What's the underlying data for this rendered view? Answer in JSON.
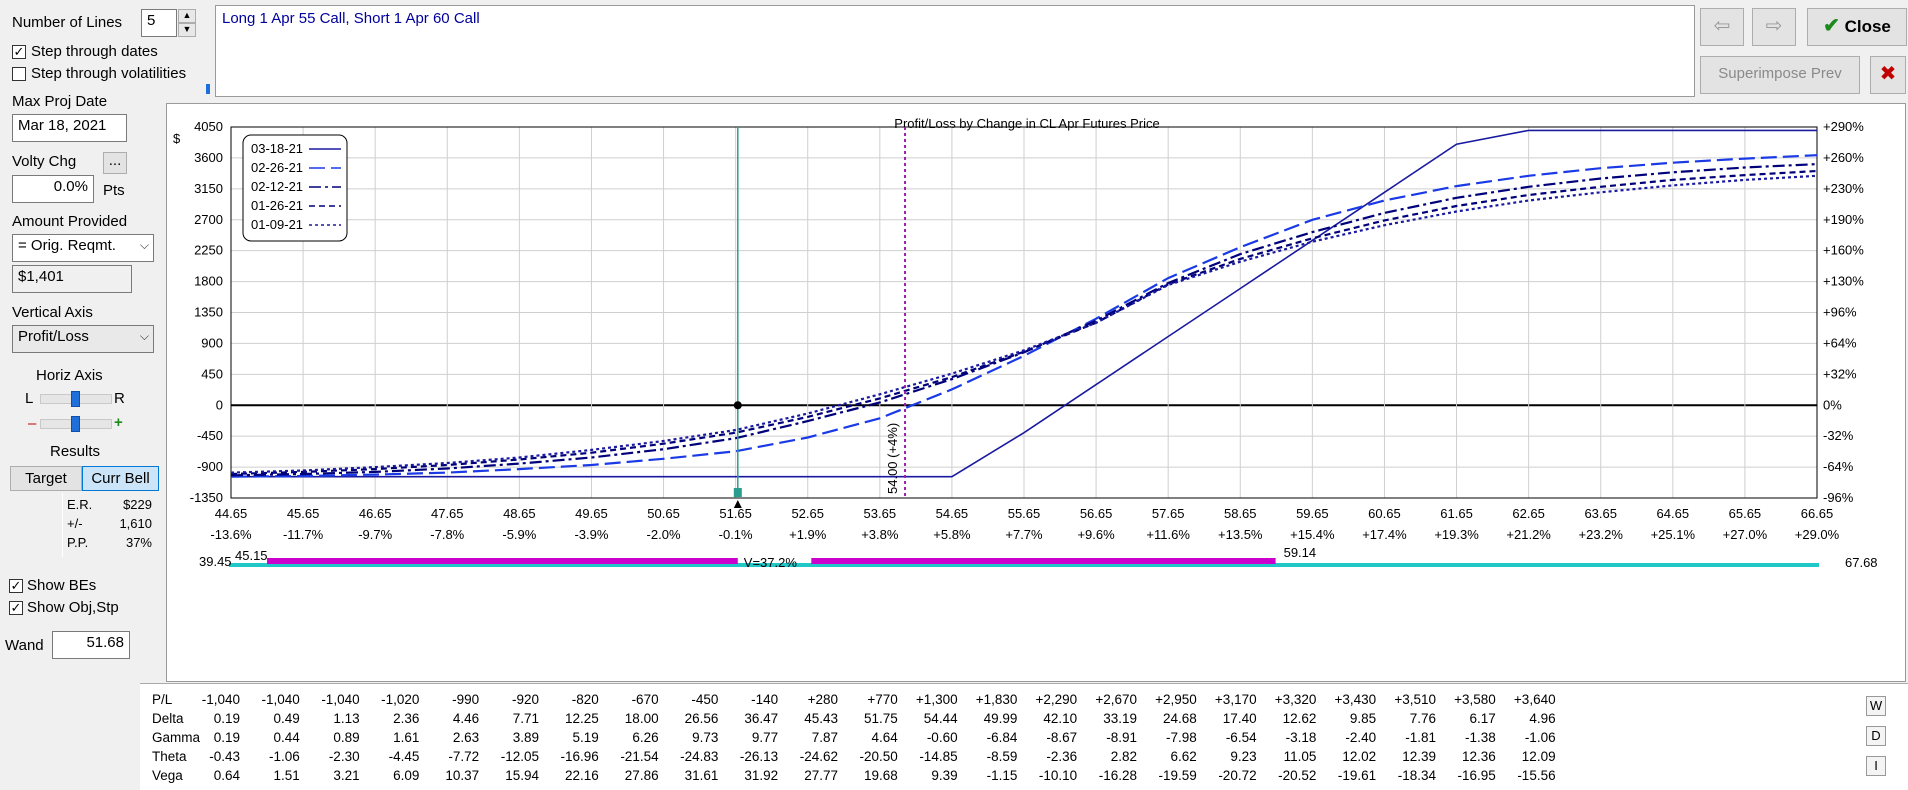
{
  "controls": {
    "number_of_lines_label": "Number of Lines",
    "number_of_lines_value": "5",
    "step_dates_label": "Step through dates",
    "step_dates_checked": true,
    "step_vol_label": "Step through volatilities",
    "step_vol_checked": false,
    "max_proj_date_label": "Max Proj Date",
    "max_proj_date_value": "Mar 18, 2021",
    "volty_chg_label": "Volty Chg",
    "volty_chg_button": "...",
    "volty_chg_value": "0.0%",
    "volty_chg_unit": "Pts",
    "amount_provided_label": "Amount Provided",
    "amount_provided_value": "= Orig. Reqmt.",
    "amount_value": "$1,401",
    "vertical_axis_label": "Vertical Axis",
    "vertical_axis_value": "Profit/Loss",
    "horiz_axis_label": "Horiz Axis",
    "horiz_l": "L",
    "horiz_r": "R",
    "zoom_minus": "–",
    "zoom_plus": "+",
    "results_label": "Results",
    "target_button": "Target",
    "curr_bell_button": "Curr Bell",
    "results": [
      {
        "key": "E.R.",
        "value": "$229"
      },
      {
        "key": "+/-",
        "value": "1,610"
      },
      {
        "key": "P.P.",
        "value": "37%"
      }
    ],
    "show_bes_label": "Show BEs",
    "show_bes_checked": true,
    "show_obj_label": "Show Obj,Stp",
    "show_obj_checked": true,
    "wand_label": "Wand",
    "wand_value": "51.68"
  },
  "description": "Long 1 Apr 55 Call, Short 1 Apr 60 Call",
  "toolbar": {
    "back_glyph": "⇦",
    "forward_glyph": "⇨",
    "close_label": "Close",
    "superimpose_label": "Superimpose Prev",
    "x_glyph": "✖"
  },
  "colors": {
    "accent": "#0000cc",
    "line": "#1a1aa0",
    "wand": "#2a9d8f",
    "target": "#9b1fa9",
    "magenta_bar": "#cc00cc",
    "cyan_bar": "#20c8c8",
    "close_check": "#1d8a1d",
    "x_red": "#c00000"
  },
  "chart_data": {
    "type": "line",
    "title": "Profit/Loss by Change in CL Apr Futures Price",
    "y_unit": "$",
    "xlim": [
      44.65,
      66.65
    ],
    "ylim": [
      -1350,
      4050
    ],
    "x_ticks": [
      "44.65",
      "45.65",
      "46.65",
      "47.65",
      "48.65",
      "49.65",
      "50.65",
      "51.65",
      "52.65",
      "53.65",
      "54.65",
      "55.65",
      "56.65",
      "57.65",
      "58.65",
      "59.65",
      "60.65",
      "61.65",
      "62.65",
      "63.65",
      "64.65",
      "65.65",
      "66.65"
    ],
    "x_pct_ticks": [
      "-13.6%",
      "-11.7%",
      "-9.7%",
      "-7.8%",
      "-5.9%",
      "-3.9%",
      "-2.0%",
      "-0.1%",
      "+1.9%",
      "+3.8%",
      "+5.8%",
      "+7.7%",
      "+9.6%",
      "+11.6%",
      "+13.5%",
      "+15.4%",
      "+17.4%",
      "+19.3%",
      "+21.2%",
      "+23.2%",
      "+25.1%",
      "+27.0%",
      "+29.0%"
    ],
    "y_ticks": [
      4050,
      3600,
      3150,
      2700,
      2250,
      1800,
      1350,
      900,
      450,
      0,
      -450,
      -900,
      -1350
    ],
    "y_pct_ticks": [
      {
        "value": 4050,
        "label": "+290%"
      },
      {
        "value": 3600,
        "label": "+260%"
      },
      {
        "value": 3150,
        "label": "+230%"
      },
      {
        "value": 2700,
        "label": "+190%"
      },
      {
        "value": 2250,
        "label": "+160%"
      },
      {
        "value": 1800,
        "label": "+130%"
      },
      {
        "value": 1350,
        "label": "+96%"
      },
      {
        "value": 900,
        "label": "+64%"
      },
      {
        "value": 450,
        "label": "+32%"
      },
      {
        "value": 0,
        "label": "0%"
      },
      {
        "value": -450,
        "label": "-32%"
      },
      {
        "value": -900,
        "label": "-64%"
      },
      {
        "value": -1350,
        "label": "-96%"
      }
    ],
    "legend": [
      "03-18-21",
      "02-26-21",
      "02-12-21",
      "01-26-21",
      "01-09-21"
    ],
    "legend_placement": "top-left",
    "grid": true,
    "x": [
      44.65,
      45.65,
      46.65,
      47.65,
      48.65,
      49.65,
      50.65,
      51.65,
      52.65,
      53.65,
      54.65,
      55.65,
      56.65,
      57.65,
      58.65,
      59.65,
      60.65,
      61.65,
      62.65,
      63.65,
      64.65,
      65.65,
      66.65
    ],
    "series": [
      {
        "name": "03-18-21",
        "dash": "solid",
        "values": [
          -1040,
          -1040,
          -1040,
          -1040,
          -1040,
          -1040,
          -1040,
          -1040,
          -1040,
          -1040,
          -1040,
          -400,
          300,
          1000,
          1700,
          2400,
          3100,
          3800,
          4000,
          4000,
          4000,
          4000,
          4000
        ]
      },
      {
        "name": "02-26-21",
        "dash": "long",
        "values": [
          -1040,
          -1030,
          -1010,
          -980,
          -930,
          -870,
          -780,
          -670,
          -470,
          -190,
          230,
          720,
          1260,
          1850,
          2300,
          2700,
          2980,
          3190,
          3340,
          3450,
          3530,
          3590,
          3640
        ]
      },
      {
        "name": "02-12-21",
        "dash": "dashdot",
        "values": [
          -1020,
          -1000,
          -970,
          -920,
          -850,
          -760,
          -640,
          -480,
          -230,
          40,
          380,
          770,
          1230,
          1780,
          2200,
          2520,
          2800,
          3020,
          3180,
          3300,
          3390,
          3460,
          3510
        ]
      },
      {
        "name": "01-26-21",
        "dash": "short",
        "values": [
          -1000,
          -970,
          -930,
          -870,
          -790,
          -690,
          -560,
          -400,
          -170,
          100,
          410,
          780,
          1200,
          1760,
          2130,
          2430,
          2690,
          2900,
          3060,
          3180,
          3280,
          3350,
          3410
        ]
      },
      {
        "name": "01-09-21",
        "dash": "dot",
        "values": [
          -980,
          -950,
          -900,
          -840,
          -760,
          -650,
          -520,
          -360,
          -120,
          160,
          460,
          800,
          1200,
          1750,
          2090,
          2380,
          2620,
          2820,
          2980,
          3100,
          3200,
          3280,
          3340
        ]
      }
    ],
    "wand_x": 51.68,
    "target_x": 54.0,
    "target_label": "54.00 (+4%)",
    "be_point": [
      51.68,
      0
    ],
    "bar_left_label": "39.45",
    "bar_left_label2": "45.15",
    "bar_vol_label": "V=37.2%",
    "bar_right_label": "59.14",
    "bar_end_label": "67.68"
  },
  "greeks": {
    "rows": [
      {
        "name": "P/L",
        "values": [
          "-1,040",
          "-1,040",
          "-1,040",
          "-1,020",
          "-990",
          "-920",
          "-820",
          "-670",
          "-450",
          "-140",
          "+280",
          "+770",
          "+1,300",
          "+1,830",
          "+2,290",
          "+2,670",
          "+2,950",
          "+3,170",
          "+3,320",
          "+3,430",
          "+3,510",
          "+3,580",
          "+3,640"
        ]
      },
      {
        "name": "Delta",
        "values": [
          "0.19",
          "0.49",
          "1.13",
          "2.36",
          "4.46",
          "7.71",
          "12.25",
          "18.00",
          "26.56",
          "36.47",
          "45.43",
          "51.75",
          "54.44",
          "49.99",
          "42.10",
          "33.19",
          "24.68",
          "17.40",
          "12.62",
          "9.85",
          "7.76",
          "6.17",
          "4.96"
        ]
      },
      {
        "name": "Gamma",
        "values": [
          "0.19",
          "0.44",
          "0.89",
          "1.61",
          "2.63",
          "3.89",
          "5.19",
          "6.26",
          "9.73",
          "9.77",
          "7.87",
          "4.64",
          "-0.60",
          "-6.84",
          "-8.67",
          "-8.91",
          "-7.98",
          "-6.54",
          "-3.18",
          "-2.40",
          "-1.81",
          "-1.38",
          "-1.06"
        ]
      },
      {
        "name": "Theta",
        "values": [
          "-0.43",
          "-1.06",
          "-2.30",
          "-4.45",
          "-7.72",
          "-12.05",
          "-16.96",
          "-21.54",
          "-24.83",
          "-26.13",
          "-24.62",
          "-20.50",
          "-14.85",
          "-8.59",
          "-2.36",
          "2.82",
          "6.62",
          "9.23",
          "11.05",
          "12.02",
          "12.39",
          "12.36",
          "12.09"
        ]
      },
      {
        "name": "Vega",
        "values": [
          "0.64",
          "1.51",
          "3.21",
          "6.09",
          "10.37",
          "15.94",
          "22.16",
          "27.86",
          "31.61",
          "31.92",
          "27.77",
          "19.68",
          "9.39",
          "-1.15",
          "-10.10",
          "-16.28",
          "-19.59",
          "-20.72",
          "-20.52",
          "-19.61",
          "-18.34",
          "-16.95",
          "-15.56"
        ]
      }
    ],
    "side_buttons": [
      "W",
      "D",
      "I"
    ]
  }
}
